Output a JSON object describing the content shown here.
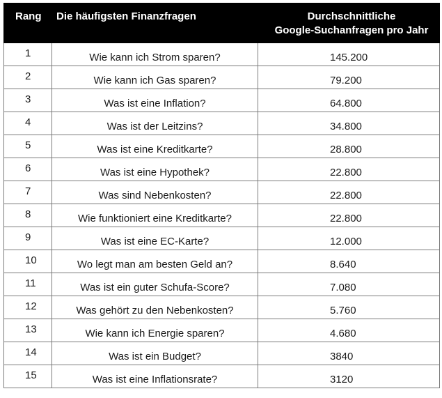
{
  "table": {
    "headers": {
      "rank": "Rang",
      "question": "Die häufigsten Finanzfragen",
      "count_line1": "Durchschnittliche",
      "count_line2": "Google-Suchanfragen pro Jahr"
    },
    "rows": [
      {
        "rank": "1",
        "question": "Wie kann ich Strom sparen?",
        "count": "145.200"
      },
      {
        "rank": "2",
        "question": "Wie kann ich Gas sparen?",
        "count": "79.200"
      },
      {
        "rank": "3",
        "question": "Was ist eine Inflation?",
        "count": "64.800"
      },
      {
        "rank": "4",
        "question": "Was ist der Leitzins?",
        "count": "34.800"
      },
      {
        "rank": "5",
        "question": "Was ist eine Kreditkarte?",
        "count": "28.800"
      },
      {
        "rank": "6",
        "question": "Was ist eine Hypothek?",
        "count": "22.800"
      },
      {
        "rank": "7",
        "question": "Was sind Nebenkosten?",
        "count": "22.800"
      },
      {
        "rank": "8",
        "question": "Wie funktioniert eine Kreditkarte?",
        "count": "22.800"
      },
      {
        "rank": "9",
        "question": "Was ist eine EC-Karte?",
        "count": "12.000"
      },
      {
        "rank": "10",
        "question": "Wo legt man am besten Geld an?",
        "count": "8.640"
      },
      {
        "rank": "11",
        "question": "Was ist ein guter Schufa-Score?",
        "count": "7.080"
      },
      {
        "rank": "12",
        "question": "Was gehört zu den Nebenkosten?",
        "count": "5.760"
      },
      {
        "rank": "13",
        "question": "Wie kann ich Energie sparen?",
        "count": "4.680"
      },
      {
        "rank": "14",
        "question": "Was ist ein Budget?",
        "count": "3840"
      },
      {
        "rank": "15",
        "question": "Was ist eine Inflationsrate?",
        "count": "3120"
      }
    ]
  }
}
